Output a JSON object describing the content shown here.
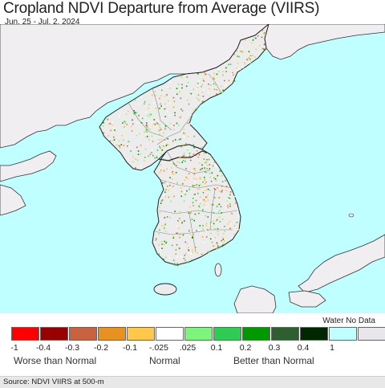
{
  "header": {
    "title": "Cropland NDVI Departure from Average (VIIRS)",
    "date_range": "Jun. 25 - Jul. 2, 2024"
  },
  "map": {
    "colors": {
      "water": "#bfffff",
      "land_outside": "#f1eef2",
      "land_region": "#ececec",
      "border": "#222222"
    }
  },
  "legend": {
    "water_label": "Water No Data",
    "swatches": [
      {
        "color": "#ff0000"
      },
      {
        "color": "#990000"
      },
      {
        "color": "#c8623e"
      },
      {
        "color": "#e89020"
      },
      {
        "color": "#ffc84a"
      },
      {
        "color": "#ffffff"
      },
      {
        "color": "#7df57d"
      },
      {
        "color": "#2ecc52"
      },
      {
        "color": "#009a00"
      },
      {
        "color": "#2f5f2f"
      },
      {
        "color": "#002800"
      },
      {
        "color": "#bfffff"
      },
      {
        "color": "#e8e6ea"
      }
    ],
    "ticks": [
      "-1",
      "-0.4",
      "-0.3",
      "-0.2",
      "-0.1",
      "-.025",
      ".025",
      "0.1",
      "0.2",
      "0.3",
      "0.4",
      "1"
    ],
    "worse_label": "Worse than Normal",
    "normal_label": "Normal",
    "better_label": "Better than Normal"
  },
  "footer": {
    "source": "Source: NDVI VIIRS at 500-m"
  }
}
